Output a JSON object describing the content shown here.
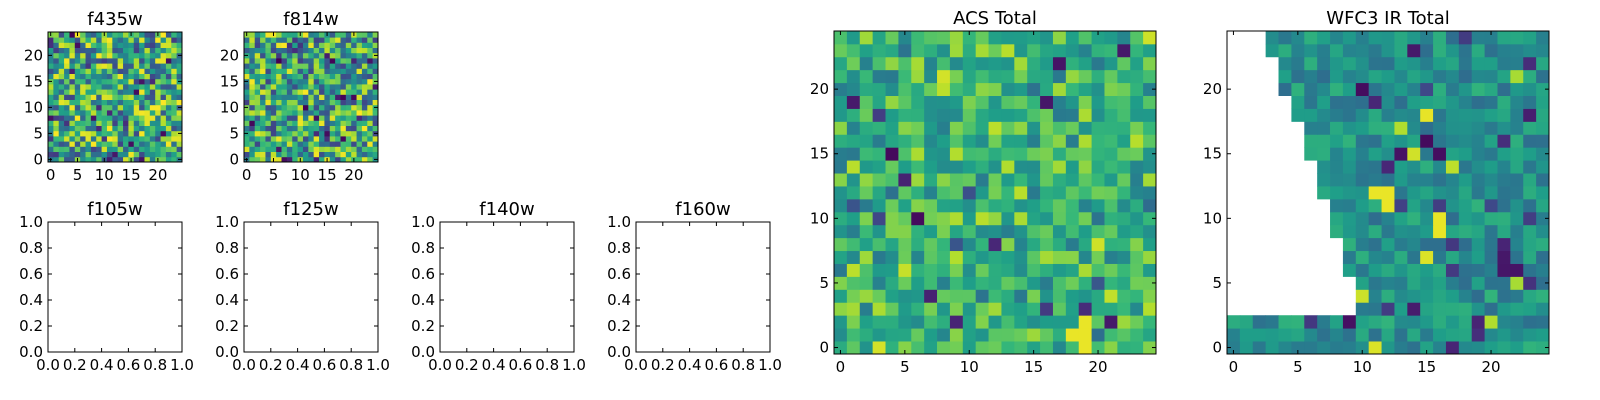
{
  "chart_data": [
    {
      "type": "heatmap",
      "title": "f435w",
      "xlim": [
        -0.5,
        24.5
      ],
      "ylim": [
        -0.5,
        24.5
      ],
      "x_ticks": [
        0,
        5,
        10,
        15,
        20
      ],
      "y_ticks": [
        0,
        5,
        10,
        15,
        20
      ],
      "x_tick_labels": [
        "0",
        "5",
        "10",
        "15",
        "20"
      ],
      "y_tick_labels": [
        "0",
        "5",
        "10",
        "15",
        "20"
      ],
      "grid": false,
      "colormap": "viridis",
      "values": []
    },
    {
      "type": "heatmap",
      "title": "f814w",
      "xlim": [
        -0.5,
        24.5
      ],
      "ylim": [
        -0.5,
        24.5
      ],
      "x_ticks": [
        0,
        5,
        10,
        15,
        20
      ],
      "y_ticks": [
        0,
        5,
        10,
        15,
        20
      ],
      "x_tick_labels": [
        "0",
        "5",
        "10",
        "15",
        "20"
      ],
      "y_tick_labels": [
        "0",
        "5",
        "10",
        "15",
        "20"
      ],
      "grid": false,
      "colormap": "viridis",
      "values": []
    },
    {
      "type": "empty",
      "title": "f105w",
      "xlim": [
        0,
        1
      ],
      "ylim": [
        0,
        1
      ],
      "x_tick_labels": [
        "0.0",
        "0.2",
        "0.4",
        "0.6",
        "0.8",
        "1.0"
      ],
      "y_tick_labels": [
        "0.0",
        "0.2",
        "0.4",
        "0.6",
        "0.8",
        "1.0"
      ],
      "grid": false
    },
    {
      "type": "empty",
      "title": "f125w",
      "xlim": [
        0,
        1
      ],
      "ylim": [
        0,
        1
      ],
      "x_tick_labels": [
        "0.0",
        "0.2",
        "0.4",
        "0.6",
        "0.8",
        "1.0"
      ],
      "y_tick_labels": [
        "0.0",
        "0.2",
        "0.4",
        "0.6",
        "0.8",
        "1.0"
      ],
      "grid": false
    },
    {
      "type": "empty",
      "title": "f140w",
      "xlim": [
        0,
        1
      ],
      "ylim": [
        0,
        1
      ],
      "x_tick_labels": [
        "0.0",
        "0.2",
        "0.4",
        "0.6",
        "0.8",
        "1.0"
      ],
      "y_tick_labels": [
        "0.0",
        "0.2",
        "0.4",
        "0.6",
        "0.8",
        "1.0"
      ],
      "grid": false
    },
    {
      "type": "empty",
      "title": "f160w",
      "xlim": [
        0,
        1
      ],
      "ylim": [
        0,
        1
      ],
      "x_tick_labels": [
        "0.0",
        "0.2",
        "0.4",
        "0.6",
        "0.8",
        "1.0"
      ],
      "y_tick_labels": [
        "0.0",
        "0.2",
        "0.4",
        "0.6",
        "0.8",
        "1.0"
      ],
      "grid": false
    },
    {
      "type": "heatmap",
      "title": "ACS Total",
      "xlim": [
        -0.5,
        24.5
      ],
      "ylim": [
        -0.5,
        24.5
      ],
      "x_ticks": [
        0,
        5,
        10,
        15,
        20
      ],
      "y_ticks": [
        0,
        5,
        10,
        15,
        20
      ],
      "x_tick_labels": [
        "0",
        "5",
        "10",
        "15",
        "20"
      ],
      "y_tick_labels": [
        "0",
        "5",
        "10",
        "15",
        "20"
      ],
      "grid": false,
      "colormap": "viridis",
      "values": []
    },
    {
      "type": "heatmap",
      "title": "WFC3 IR Total",
      "xlim": [
        -0.5,
        24.5
      ],
      "ylim": [
        -0.5,
        24.5
      ],
      "x_ticks": [
        0,
        5,
        10,
        15,
        20
      ],
      "y_ticks": [
        0,
        5,
        10,
        15,
        20
      ],
      "x_tick_labels": [
        "0",
        "5",
        "10",
        "15",
        "20"
      ],
      "y_tick_labels": [
        "0",
        "5",
        "10",
        "15",
        "20"
      ],
      "grid": false,
      "colormap": "viridis",
      "empty_region": "upper-left wedge is blank",
      "values": []
    }
  ]
}
